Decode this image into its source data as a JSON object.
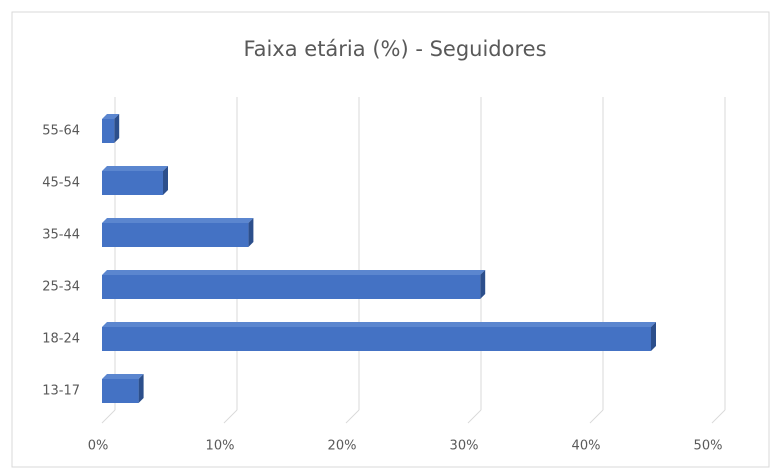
{
  "chart_data": {
    "type": "bar",
    "orientation": "horizontal",
    "title": "Faixa etária (%) - Seguidores",
    "categories": [
      "13-17",
      "18-24",
      "25-34",
      "35-44",
      "45-54",
      "55-64"
    ],
    "values": [
      3,
      45,
      31,
      12,
      5,
      1
    ],
    "color": "#4472c4",
    "xlim": [
      0,
      50
    ],
    "xticks": [
      {
        "value": 0,
        "label": "0%"
      },
      {
        "value": 10,
        "label": "10%"
      },
      {
        "value": 20,
        "label": "20%"
      },
      {
        "value": 30,
        "label": "30%"
      },
      {
        "value": 40,
        "label": "40%"
      },
      {
        "value": 50,
        "label": "50%"
      }
    ],
    "grid": true
  }
}
